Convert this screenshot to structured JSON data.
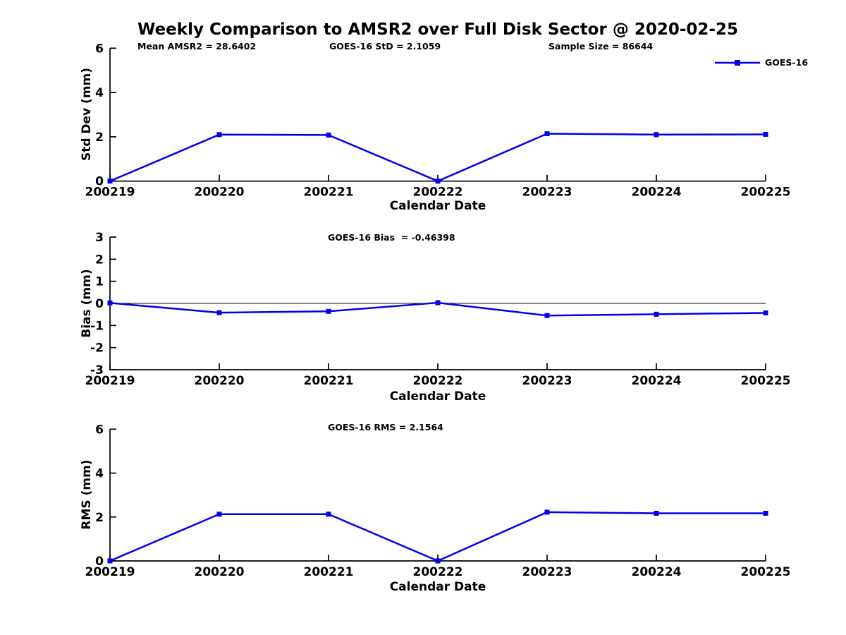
{
  "figure_title": "Weekly Comparison to AMSR2 over Full Disk Sector @ 2020-02-25",
  "legend": {
    "label": "GOES-16"
  },
  "colors": {
    "series_line": "#0000EE",
    "axis": "#000000",
    "background": "#FFFFFF"
  },
  "chart_data": [
    {
      "type": "line",
      "name": "std-dev-subplot",
      "ylabel": "Std Dev (mm)",
      "xlabel": "Calendar Date",
      "categories": [
        "200219",
        "200220",
        "200221",
        "200222",
        "200223",
        "200224",
        "200225"
      ],
      "ylim": [
        0,
        6
      ],
      "yticks": [
        0,
        2,
        4,
        6
      ],
      "grid": false,
      "zero_line": false,
      "legend_position": "top-right-outside",
      "series": [
        {
          "name": "GOES-16",
          "marker": "square",
          "values": [
            0,
            2.1,
            2.08,
            0,
            2.14,
            2.1,
            2.11
          ]
        }
      ],
      "annotations": [
        {
          "text": "Mean AMSR2 = 28.6402"
        },
        {
          "text": "GOES-16 StD = 2.1059"
        },
        {
          "text": "Sample Size = 86644"
        }
      ]
    },
    {
      "type": "line",
      "name": "bias-subplot",
      "ylabel": "Bias (mm)",
      "xlabel": "Calendar Date",
      "categories": [
        "200219",
        "200220",
        "200221",
        "200222",
        "200223",
        "200224",
        "200225"
      ],
      "ylim": [
        -3,
        3
      ],
      "yticks": [
        -3,
        -2,
        -1,
        0,
        1,
        2,
        3
      ],
      "grid": false,
      "zero_line": true,
      "series": [
        {
          "name": "GOES-16",
          "marker": "square",
          "values": [
            0.02,
            -0.42,
            -0.36,
            0.03,
            -0.55,
            -0.49,
            -0.43
          ]
        }
      ],
      "annotations": [
        {
          "text": "GOES-16 Bias  = -0.46398"
        }
      ]
    },
    {
      "type": "line",
      "name": "rms-subplot",
      "ylabel": "RMS (mm)",
      "xlabel": "Calendar Date",
      "categories": [
        "200219",
        "200220",
        "200221",
        "200222",
        "200223",
        "200224",
        "200225"
      ],
      "ylim": [
        0,
        6
      ],
      "yticks": [
        0,
        2,
        4,
        6
      ],
      "grid": false,
      "zero_line": false,
      "series": [
        {
          "name": "GOES-16",
          "marker": "square",
          "values": [
            0,
            2.13,
            2.13,
            0,
            2.22,
            2.17,
            2.17
          ]
        }
      ],
      "annotations": [
        {
          "text": "GOES-16 RMS = 2.1564"
        }
      ]
    }
  ]
}
